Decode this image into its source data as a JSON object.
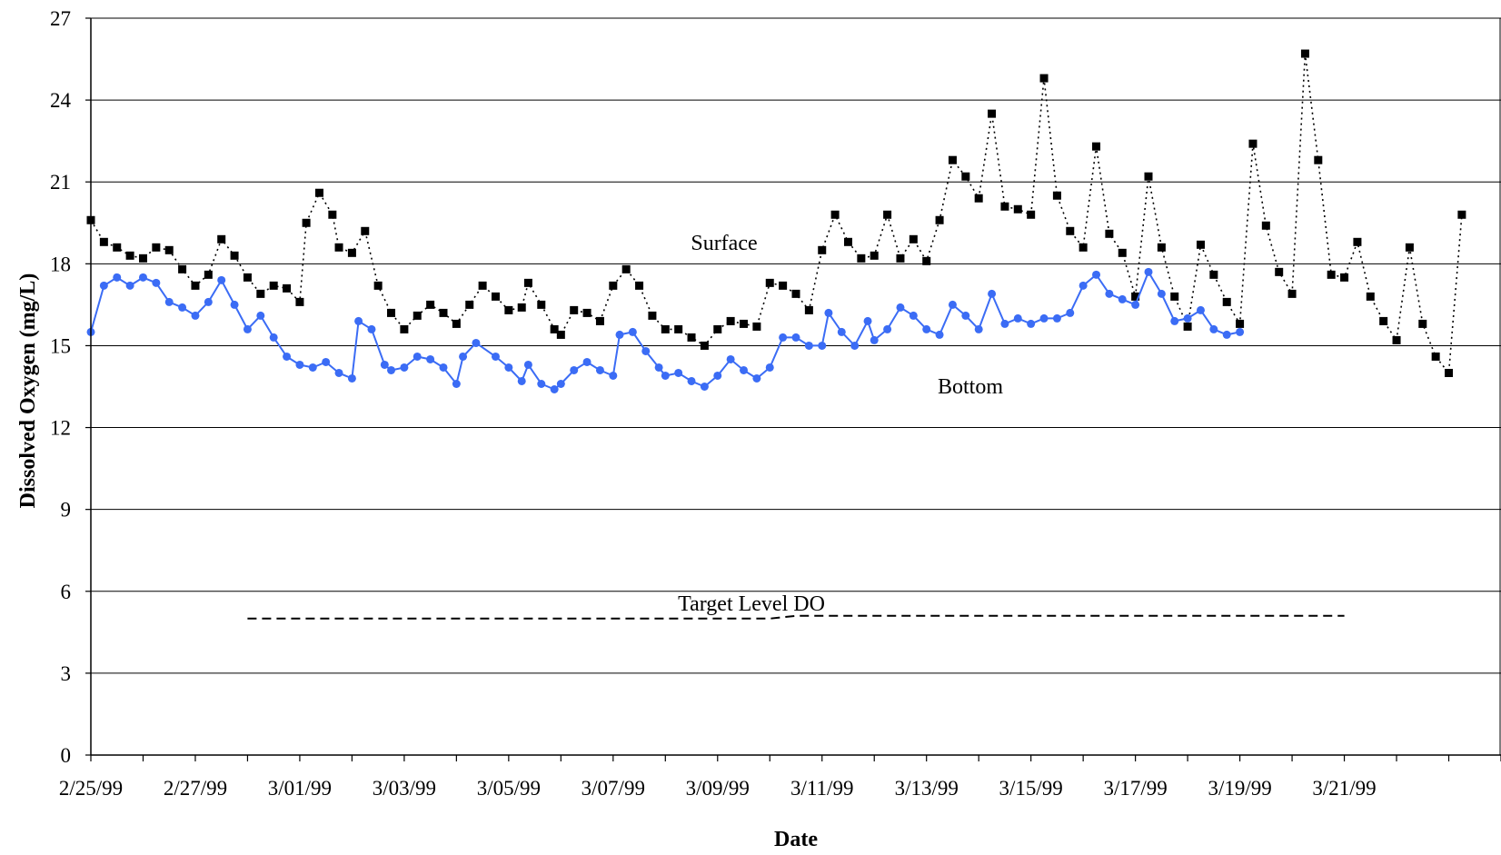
{
  "chart_data": {
    "type": "line",
    "xlabel": "Date",
    "ylabel": "Dissolved Oxygen (mg/L)",
    "ylim": [
      0,
      27
    ],
    "yticks": [
      0,
      3,
      6,
      9,
      12,
      15,
      18,
      21,
      24,
      27
    ],
    "xlim": [
      "2/25/99",
      "3/23/99"
    ],
    "xtick_labels": [
      "2/25/99",
      "2/27/99",
      "3/01/99",
      "3/03/99",
      "3/05/99",
      "3/07/99",
      "3/09/99",
      "3/11/99",
      "3/13/99",
      "3/15/99",
      "3/17/99",
      "3/19/99",
      "3/21/99"
    ],
    "grid": "horizontal",
    "annotations": {
      "surface": "Surface",
      "bottom": "Bottom",
      "target": "Target Level DO"
    },
    "colors": {
      "surface": "#000000",
      "bottom": "#3b6cf5",
      "target": "#000000"
    },
    "series": [
      {
        "key": "surface",
        "marker": "square",
        "line": "dotted",
        "points": [
          [
            "2/25/99",
            19.6
          ],
          [
            "2/25/99 06:00",
            18.8
          ],
          [
            "2/25/99 12:00",
            18.6
          ],
          [
            "2/25/99 18:00",
            18.3
          ],
          [
            "2/26/99",
            18.2
          ],
          [
            "2/26/99 06:00",
            18.6
          ],
          [
            "2/26/99 12:00",
            18.5
          ],
          [
            "2/26/99 18:00",
            17.8
          ],
          [
            "2/27/99",
            17.2
          ],
          [
            "2/27/99 06:00",
            17.6
          ],
          [
            "2/27/99 12:00",
            18.9
          ],
          [
            "2/27/99 18:00",
            18.3
          ],
          [
            "2/28/99",
            17.5
          ],
          [
            "2/28/99 06:00",
            16.9
          ],
          [
            "2/28/99 12:00",
            17.2
          ],
          [
            "2/28/99 18:00",
            17.1
          ],
          [
            "3/01/99",
            16.6
          ],
          [
            "3/01/99 03:00",
            19.5
          ],
          [
            "3/01/99 09:00",
            20.6
          ],
          [
            "3/01/99 15:00",
            19.8
          ],
          [
            "3/01/99 18:00",
            18.6
          ],
          [
            "3/02/99",
            18.4
          ],
          [
            "3/02/99 06:00",
            19.2
          ],
          [
            "3/02/99 12:00",
            17.2
          ],
          [
            "3/02/99 18:00",
            16.2
          ],
          [
            "3/03/99",
            15.6
          ],
          [
            "3/03/99 06:00",
            16.1
          ],
          [
            "3/03/99 12:00",
            16.5
          ],
          [
            "3/03/99 18:00",
            16.2
          ],
          [
            "3/04/99",
            15.8
          ],
          [
            "3/04/99 06:00",
            16.5
          ],
          [
            "3/04/99 12:00",
            17.2
          ],
          [
            "3/04/99 18:00",
            16.8
          ],
          [
            "3/05/99",
            16.3
          ],
          [
            "3/05/99 06:00",
            16.4
          ],
          [
            "3/05/99 09:00",
            17.3
          ],
          [
            "3/05/99 15:00",
            16.5
          ],
          [
            "3/05/99 21:00",
            15.6
          ],
          [
            "3/06/99",
            15.4
          ],
          [
            "3/06/99 06:00",
            16.3
          ],
          [
            "3/06/99 12:00",
            16.2
          ],
          [
            "3/06/99 18:00",
            15.9
          ],
          [
            "3/07/99",
            17.2
          ],
          [
            "3/07/99 06:00",
            17.8
          ],
          [
            "3/07/99 12:00",
            17.2
          ],
          [
            "3/07/99 18:00",
            16.1
          ],
          [
            "3/08/99",
            15.6
          ],
          [
            "3/08/99 06:00",
            15.6
          ],
          [
            "3/08/99 12:00",
            15.3
          ],
          [
            "3/08/99 18:00",
            15.0
          ],
          [
            "3/09/99",
            15.6
          ],
          [
            "3/09/99 06:00",
            15.9
          ],
          [
            "3/09/99 12:00",
            15.8
          ],
          [
            "3/09/99 18:00",
            15.7
          ],
          [
            "3/10/99",
            17.3
          ],
          [
            "3/10/99 06:00",
            17.2
          ],
          [
            "3/10/99 12:00",
            16.9
          ],
          [
            "3/10/99 18:00",
            16.3
          ],
          [
            "3/11/99",
            18.5
          ],
          [
            "3/11/99 06:00",
            19.8
          ],
          [
            "3/11/99 12:00",
            18.8
          ],
          [
            "3/11/99 18:00",
            18.2
          ],
          [
            "3/12/99",
            18.3
          ],
          [
            "3/12/99 06:00",
            19.8
          ],
          [
            "3/12/99 12:00",
            18.2
          ],
          [
            "3/12/99 18:00",
            18.9
          ],
          [
            "3/13/99",
            18.1
          ],
          [
            "3/13/99 06:00",
            19.6
          ],
          [
            "3/13/99 12:00",
            21.8
          ],
          [
            "3/13/99 18:00",
            21.2
          ],
          [
            "3/14/99",
            20.4
          ],
          [
            "3/14/99 06:00",
            23.5
          ],
          [
            "3/14/99 12:00",
            20.1
          ],
          [
            "3/14/99 18:00",
            20.0
          ],
          [
            "3/15/99",
            19.8
          ],
          [
            "3/15/99 06:00",
            24.8
          ],
          [
            "3/15/99 12:00",
            20.5
          ],
          [
            "3/15/99 18:00",
            19.2
          ],
          [
            "3/16/99",
            18.6
          ],
          [
            "3/16/99 06:00",
            22.3
          ],
          [
            "3/16/99 12:00",
            19.1
          ],
          [
            "3/16/99 18:00",
            18.4
          ],
          [
            "3/17/99",
            16.8
          ],
          [
            "3/17/99 06:00",
            21.2
          ],
          [
            "3/17/99 12:00",
            18.6
          ],
          [
            "3/17/99 18:00",
            16.8
          ],
          [
            "3/18/99",
            15.7
          ],
          [
            "3/18/99 06:00",
            18.7
          ],
          [
            "3/18/99 12:00",
            17.6
          ],
          [
            "3/18/99 18:00",
            16.6
          ],
          [
            "3/19/99",
            15.8
          ],
          [
            "3/19/99 06:00",
            22.4
          ],
          [
            "3/19/99 12:00",
            19.4
          ],
          [
            "3/19/99 18:00",
            17.7
          ],
          [
            "3/20/99",
            16.9
          ],
          [
            "3/20/99 06:00",
            25.7
          ],
          [
            "3/20/99 12:00",
            21.8
          ],
          [
            "3/20/99 18:00",
            17.6
          ],
          [
            "3/21/99",
            17.5
          ],
          [
            "3/21/99 06:00",
            18.8
          ],
          [
            "3/21/99 12:00",
            16.8
          ],
          [
            "3/21/99 18:00",
            15.9
          ],
          [
            "3/22/99",
            15.2
          ],
          [
            "3/22/99 06:00",
            18.6
          ],
          [
            "3/22/99 12:00",
            15.8
          ],
          [
            "3/22/99 18:00",
            14.6
          ],
          [
            "3/23/99",
            14.0
          ],
          [
            "3/23/99 06:00",
            19.8
          ]
        ]
      },
      {
        "key": "bottom",
        "marker": "circle",
        "line": "solid",
        "points": [
          [
            "2/25/99",
            15.5
          ],
          [
            "2/25/99 06:00",
            17.2
          ],
          [
            "2/25/99 12:00",
            17.5
          ],
          [
            "2/25/99 18:00",
            17.2
          ],
          [
            "2/26/99",
            17.5
          ],
          [
            "2/26/99 06:00",
            17.3
          ],
          [
            "2/26/99 12:00",
            16.6
          ],
          [
            "2/26/99 18:00",
            16.4
          ],
          [
            "2/27/99",
            16.1
          ],
          [
            "2/27/99 06:00",
            16.6
          ],
          [
            "2/27/99 12:00",
            17.4
          ],
          [
            "2/27/99 18:00",
            16.5
          ],
          [
            "2/28/99",
            15.6
          ],
          [
            "2/28/99 06:00",
            16.1
          ],
          [
            "2/28/99 12:00",
            15.3
          ],
          [
            "2/28/99 18:00",
            14.6
          ],
          [
            "3/01/99",
            14.3
          ],
          [
            "3/01/99 06:00",
            14.2
          ],
          [
            "3/01/99 12:00",
            14.4
          ],
          [
            "3/01/99 18:00",
            14.0
          ],
          [
            "3/02/99",
            13.8
          ],
          [
            "3/02/99 03:00",
            15.9
          ],
          [
            "3/02/99 09:00",
            15.6
          ],
          [
            "3/02/99 15:00",
            14.3
          ],
          [
            "3/02/99 18:00",
            14.1
          ],
          [
            "3/03/99",
            14.2
          ],
          [
            "3/03/99 06:00",
            14.6
          ],
          [
            "3/03/99 12:00",
            14.5
          ],
          [
            "3/03/99 18:00",
            14.2
          ],
          [
            "3/04/99",
            13.6
          ],
          [
            "3/04/99 03:00",
            14.6
          ],
          [
            "3/04/99 09:00",
            15.1
          ],
          [
            "3/04/99 18:00",
            14.6
          ],
          [
            "3/05/99",
            14.2
          ],
          [
            "3/05/99 06:00",
            13.7
          ],
          [
            "3/05/99 09:00",
            14.3
          ],
          [
            "3/05/99 15:00",
            13.6
          ],
          [
            "3/05/99 21:00",
            13.4
          ],
          [
            "3/06/99",
            13.6
          ],
          [
            "3/06/99 06:00",
            14.1
          ],
          [
            "3/06/99 12:00",
            14.4
          ],
          [
            "3/06/99 18:00",
            14.1
          ],
          [
            "3/07/99",
            13.9
          ],
          [
            "3/07/99 03:00",
            15.4
          ],
          [
            "3/07/99 09:00",
            15.5
          ],
          [
            "3/07/99 15:00",
            14.8
          ],
          [
            "3/07/99 21:00",
            14.2
          ],
          [
            "3/08/99",
            13.9
          ],
          [
            "3/08/99 06:00",
            14.0
          ],
          [
            "3/08/99 12:00",
            13.7
          ],
          [
            "3/08/99 18:00",
            13.5
          ],
          [
            "3/09/99",
            13.9
          ],
          [
            "3/09/99 06:00",
            14.5
          ],
          [
            "3/09/99 12:00",
            14.1
          ],
          [
            "3/09/99 18:00",
            13.8
          ],
          [
            "3/10/99",
            14.2
          ],
          [
            "3/10/99 06:00",
            15.3
          ],
          [
            "3/10/99 12:00",
            15.3
          ],
          [
            "3/10/99 18:00",
            15.0
          ],
          [
            "3/11/99",
            15.0
          ],
          [
            "3/11/99 03:00",
            16.2
          ],
          [
            "3/11/99 09:00",
            15.5
          ],
          [
            "3/11/99 15:00",
            15.0
          ],
          [
            "3/11/99 21:00",
            15.9
          ],
          [
            "3/12/99",
            15.2
          ],
          [
            "3/12/99 06:00",
            15.6
          ],
          [
            "3/12/99 12:00",
            16.4
          ],
          [
            "3/12/99 18:00",
            16.1
          ],
          [
            "3/13/99",
            15.6
          ],
          [
            "3/13/99 06:00",
            15.4
          ],
          [
            "3/13/99 12:00",
            16.5
          ],
          [
            "3/13/99 18:00",
            16.1
          ],
          [
            "3/14/99",
            15.6
          ],
          [
            "3/14/99 06:00",
            16.9
          ],
          [
            "3/14/99 12:00",
            15.8
          ],
          [
            "3/14/99 18:00",
            16.0
          ],
          [
            "3/15/99",
            15.8
          ],
          [
            "3/15/99 06:00",
            16.0
          ],
          [
            "3/15/99 12:00",
            16.0
          ],
          [
            "3/15/99 18:00",
            16.2
          ],
          [
            "3/16/99",
            17.2
          ],
          [
            "3/16/99 06:00",
            17.6
          ],
          [
            "3/16/99 12:00",
            16.9
          ],
          [
            "3/16/99 18:00",
            16.7
          ],
          [
            "3/17/99",
            16.5
          ],
          [
            "3/17/99 06:00",
            17.7
          ],
          [
            "3/17/99 12:00",
            16.9
          ],
          [
            "3/17/99 18:00",
            15.9
          ],
          [
            "3/18/99",
            16.0
          ],
          [
            "3/18/99 06:00",
            16.3
          ],
          [
            "3/18/99 12:00",
            15.6
          ],
          [
            "3/18/99 18:00",
            15.4
          ],
          [
            "3/19/99",
            15.5
          ]
        ]
      },
      {
        "key": "target",
        "marker": "none",
        "line": "dashed",
        "points": [
          [
            "2/28/99",
            5.0
          ],
          [
            "3/10/99",
            5.0
          ],
          [
            "3/10/99 12:00",
            5.1
          ],
          [
            "3/21/99",
            5.1
          ]
        ]
      }
    ]
  }
}
